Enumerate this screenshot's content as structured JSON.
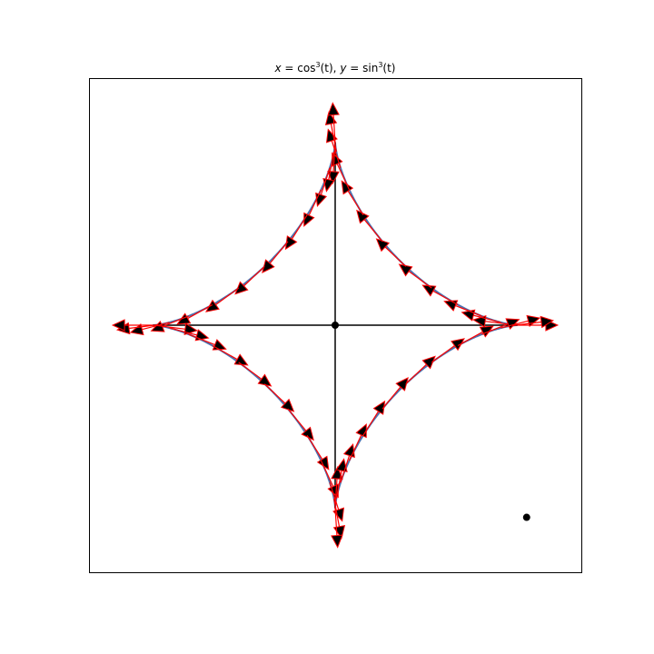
{
  "chart_data": {
    "type": "line",
    "title": {
      "x_part": "x",
      "x_func": "cos",
      "y_part": "y",
      "y_func": "sin",
      "power": "3",
      "arg": "(t)"
    },
    "xlabel": "",
    "ylabel": "",
    "xlim": [
      -1.35,
      1.35
    ],
    "ylim": [
      -1.35,
      1.35
    ],
    "grid": false,
    "ticks_visible": false,
    "parametric_t_range_degrees": [
      0,
      360
    ],
    "curve": {
      "name": "astroid",
      "x_expr": "cos(t)^3",
      "y_expr": "sin(t)^3",
      "color": "#4c72b0"
    },
    "axes_lines": {
      "color": "#000000",
      "x_axis": {
        "x": [
          -1.0,
          1.0
        ],
        "y": [
          0.0,
          0.0
        ]
      },
      "y_axis": {
        "x": [
          0.0,
          0.0
        ],
        "y": [
          -1.0,
          1.0
        ]
      }
    },
    "points": [
      {
        "x": 0.0,
        "y": 0.0,
        "color": "#000000"
      },
      {
        "x": 1.05,
        "y": -1.05,
        "color": "#000000"
      }
    ],
    "tangent_arrows": {
      "color": "#ff0000",
      "head_color": "#000000",
      "t_values_degrees": [
        0,
        7.2,
        14.4,
        21.6,
        28.8,
        36,
        43.2,
        50.4,
        57.6,
        64.8,
        72,
        79.2,
        86.4,
        93.6,
        100.8,
        108,
        115.2,
        122.4,
        129.6,
        136.8,
        144,
        151.2,
        158.4,
        165.6,
        172.8,
        180,
        187.2,
        194.4,
        201.6,
        208.8,
        216,
        223.2,
        230.4,
        237.6,
        244.8,
        252,
        259.2,
        266.4,
        273.6,
        280.8,
        288,
        295.2,
        302.4,
        309.6,
        316.8,
        324,
        331.2,
        338.4,
        345.6,
        352.8
      ],
      "length": 0.22
    }
  }
}
